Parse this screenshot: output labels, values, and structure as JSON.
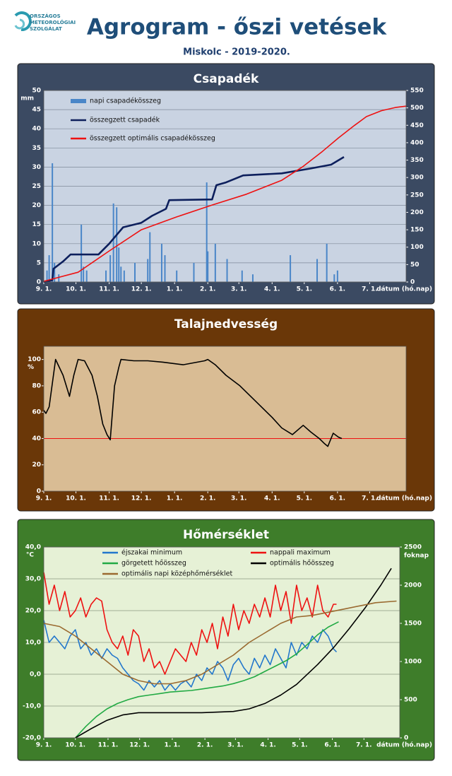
{
  "header": {
    "logo": [
      "ORSZÁGOS",
      "METEOROLÓGIAI",
      "SZOLGÁLAT"
    ],
    "title": "Agrogram - őszi vetések",
    "subtitle": "Miskolc - 2019-2020."
  },
  "chart_data": [
    {
      "type": "bar",
      "title": "Csapadék",
      "y_label": "mm",
      "x_label": "dátum (hó.nap)",
      "xlim": [
        0,
        338
      ],
      "xticks": [
        {
          "value": 0,
          "label": "9. 1."
        },
        {
          "value": 30,
          "label": "10. 1."
        },
        {
          "value": 61,
          "label": "11. 1."
        },
        {
          "value": 91,
          "label": "12. 1."
        },
        {
          "value": 122,
          "label": "1. 1."
        },
        {
          "value": 153,
          "label": "2. 1."
        },
        {
          "value": 182,
          "label": "3. 1."
        },
        {
          "value": 213,
          "label": "4. 1."
        },
        {
          "value": 243,
          "label": "5. 1."
        },
        {
          "value": 274,
          "label": "6. 1."
        },
        {
          "value": 304,
          "label": "7. 1."
        }
      ],
      "ylim": [
        0,
        50
      ],
      "yticks": [
        0,
        5,
        10,
        15,
        20,
        25,
        30,
        35,
        40,
        45,
        50
      ],
      "y2lim": [
        0,
        550
      ],
      "y2ticks": [
        0,
        50,
        100,
        150,
        200,
        250,
        300,
        350,
        400,
        450,
        500,
        550
      ],
      "grid": true,
      "series": [
        {
          "name": "napi csapadékösszeg",
          "type": "bar",
          "color": "#4a86c8",
          "x": [
            3,
            5,
            8,
            10,
            14,
            35,
            37,
            40,
            58,
            62,
            65,
            68,
            70,
            72,
            75,
            85,
            97,
            99,
            110,
            113,
            124,
            140,
            152,
            153,
            160,
            171,
            185,
            195,
            230,
            255,
            264,
            271,
            274
          ],
          "values": [
            3,
            7,
            31,
            5,
            2,
            15,
            4,
            3,
            3,
            7,
            20.5,
            19.5,
            9,
            4,
            3,
            5,
            6,
            13,
            10,
            7,
            3,
            5,
            26,
            8,
            10,
            6,
            3,
            2,
            7,
            6,
            10,
            2,
            3
          ]
        },
        {
          "name": "összegzett csapadék",
          "type": "line",
          "axis": "y2",
          "color": "#0d1f5c",
          "x": [
            0,
            8,
            9,
            18,
            25,
            32,
            51,
            61,
            74,
            91,
            101,
            114,
            117,
            157,
            161,
            170,
            186,
            222,
            249,
            268,
            280
          ],
          "values": [
            0,
            5,
            38,
            59,
            79,
            79,
            79,
            110,
            157,
            170,
            190,
            210,
            235,
            237,
            278,
            286,
            306,
            312,
            326,
            337,
            359
          ]
        },
        {
          "name": "összegzett optimális csapadékösszeg",
          "type": "line",
          "axis": "y2",
          "color": "#ee1111",
          "x": [
            0,
            32,
            61,
            91,
            124,
            157,
            189,
            222,
            242,
            260,
            275,
            290,
            301,
            315,
            328,
            338
          ],
          "values": [
            2,
            28,
            89,
            150,
            187,
            221,
            252,
            292,
            332,
            375,
            414,
            450,
            475,
            492,
            501,
            505
          ]
        }
      ]
    },
    {
      "type": "line",
      "title": "Talajnedvesség",
      "y_label": "%",
      "x_label": "dátum (hó.nap)",
      "xlim": [
        0,
        338
      ],
      "xticks": [
        {
          "value": 0,
          "label": "9. 1."
        },
        {
          "value": 30,
          "label": "10. 1."
        },
        {
          "value": 61,
          "label": "11. 1."
        },
        {
          "value": 91,
          "label": "12. 1."
        },
        {
          "value": 122,
          "label": "1. 1."
        },
        {
          "value": 153,
          "label": "2. 1."
        },
        {
          "value": 182,
          "label": "3. 1."
        },
        {
          "value": 213,
          "label": "4. 1."
        },
        {
          "value": 243,
          "label": "5. 1."
        },
        {
          "value": 274,
          "label": "6. 1."
        },
        {
          "value": 304,
          "label": "7. 1."
        }
      ],
      "ylim": [
        0,
        110
      ],
      "yticks": [
        0,
        20,
        40,
        60,
        80,
        100
      ],
      "grid": false,
      "threshold": 40,
      "threshold_color": "#ee1111",
      "series": [
        {
          "name": "talajnedvesség",
          "type": "line",
          "color": "#000000",
          "x": [
            0,
            2,
            5,
            11,
            18,
            24,
            28,
            32,
            38,
            45,
            50,
            55,
            59,
            62,
            66,
            70,
            72,
            84,
            97,
            111,
            130,
            150,
            153,
            160,
            170,
            183,
            193,
            203,
            213,
            222,
            232,
            242,
            249,
            257,
            262,
            265,
            270,
            275,
            278
          ],
          "values": [
            61.5,
            59,
            64,
            100,
            88,
            72,
            88,
            100,
            99,
            88,
            72,
            51,
            43,
            39,
            80,
            94,
            100,
            99,
            99,
            98,
            96,
            99,
            100,
            96,
            88,
            80,
            72,
            64,
            56,
            48,
            43,
            50,
            45,
            40,
            36,
            34,
            44,
            41,
            40
          ]
        }
      ]
    },
    {
      "type": "line",
      "title": "Hőmérséklet",
      "y_label": "°C",
      "y2_label": "foknap",
      "x_label": "dátum (hó.nap)",
      "xlim": [
        0,
        338
      ],
      "xticks": [
        {
          "value": 0,
          "label": "9. 1."
        },
        {
          "value": 30,
          "label": "10. 1."
        },
        {
          "value": 61,
          "label": "11. 1."
        },
        {
          "value": 91,
          "label": "12. 1."
        },
        {
          "value": 122,
          "label": "1. 1."
        },
        {
          "value": 153,
          "label": "2. 1."
        },
        {
          "value": 182,
          "label": "3. 1."
        },
        {
          "value": 213,
          "label": "4. 1."
        },
        {
          "value": 243,
          "label": "5. 1."
        },
        {
          "value": 274,
          "label": "6. 1."
        },
        {
          "value": 304,
          "label": "7. 1."
        }
      ],
      "ylim": [
        -20,
        40
      ],
      "yticks": [
        {
          "value": -20,
          "label": "-20,0"
        },
        {
          "value": -10,
          "label": "-10,0"
        },
        {
          "value": 0,
          "label": "0,0"
        },
        {
          "value": 10,
          "label": "10,0"
        },
        {
          "value": 20,
          "label": "20,0"
        },
        {
          "value": 30,
          "label": "30,0"
        },
        {
          "value": 40,
          "label": "40,0"
        }
      ],
      "y2lim": [
        0,
        2500
      ],
      "y2ticks": [
        0,
        500,
        1000,
        1500,
        2000,
        2500
      ],
      "grid": true,
      "series": [
        {
          "name": "éjszakai minimum",
          "type": "line",
          "color": "#2277cc",
          "x": [
            0,
            5,
            10,
            15,
            20,
            25,
            30,
            35,
            40,
            45,
            50,
            55,
            60,
            65,
            70,
            75,
            80,
            85,
            90,
            95,
            100,
            105,
            110,
            115,
            120,
            125,
            130,
            135,
            140,
            145,
            150,
            155,
            160,
            165,
            170,
            175,
            180,
            185,
            190,
            195,
            200,
            205,
            210,
            215,
            220,
            225,
            230,
            235,
            240,
            245,
            250,
            255,
            260,
            265,
            270,
            275,
            278
          ],
          "values": [
            17,
            10,
            12,
            10,
            8,
            12,
            14,
            8,
            10,
            6,
            8,
            5,
            8,
            6,
            5,
            2,
            0,
            -2,
            -3,
            -5,
            -2,
            -4,
            -2,
            -5,
            -3,
            -5,
            -3,
            -2,
            -4,
            0,
            -2,
            2,
            0,
            4,
            2,
            -2,
            3,
            5,
            2,
            0,
            5,
            2,
            6,
            3,
            8,
            5,
            2,
            10,
            6,
            10,
            8,
            12,
            10,
            14,
            12,
            8,
            7
          ]
        },
        {
          "name": "nappali maximum",
          "type": "line",
          "color": "#ee1111",
          "x": [
            0,
            5,
            10,
            15,
            20,
            25,
            30,
            35,
            40,
            45,
            50,
            55,
            60,
            65,
            70,
            75,
            80,
            85,
            90,
            95,
            100,
            105,
            110,
            115,
            120,
            125,
            130,
            135,
            140,
            145,
            150,
            155,
            160,
            165,
            170,
            175,
            180,
            185,
            190,
            195,
            200,
            205,
            210,
            215,
            220,
            225,
            230,
            235,
            240,
            245,
            250,
            255,
            260,
            265,
            270,
            275,
            278
          ],
          "values": [
            32,
            22,
            28,
            20,
            26,
            18,
            20,
            24,
            18,
            22,
            24,
            23,
            14,
            10,
            8,
            12,
            6,
            14,
            12,
            4,
            8,
            2,
            4,
            0,
            4,
            8,
            6,
            4,
            10,
            6,
            14,
            10,
            16,
            8,
            18,
            12,
            22,
            14,
            20,
            16,
            22,
            18,
            24,
            18,
            28,
            20,
            26,
            16,
            28,
            20,
            24,
            18,
            28,
            20,
            18,
            22,
            22
          ]
        },
        {
          "name": "görgetett hőösszeg",
          "type": "line",
          "axis": "y2",
          "color": "#22aa44",
          "x": [
            30,
            40,
            50,
            60,
            70,
            80,
            90,
            100,
            110,
            120,
            130,
            140,
            150,
            160,
            170,
            180,
            190,
            200,
            210,
            220,
            230,
            240,
            250,
            260,
            270,
            280
          ],
          "values": [
            0,
            150,
            280,
            380,
            450,
            500,
            540,
            560,
            580,
            600,
            610,
            620,
            640,
            660,
            680,
            710,
            750,
            800,
            870,
            940,
            1010,
            1100,
            1220,
            1350,
            1450,
            1520
          ]
        },
        {
          "name": "optimális hőösszeg",
          "type": "line",
          "axis": "y2",
          "color": "#000000",
          "x": [
            30,
            45,
            60,
            75,
            90,
            120,
            150,
            180,
            195,
            210,
            225,
            240,
            260,
            275,
            290,
            305,
            320,
            330
          ],
          "values": [
            0,
            120,
            230,
            300,
            330,
            330,
            330,
            345,
            380,
            450,
            560,
            700,
            960,
            1180,
            1430,
            1700,
            2000,
            2220
          ]
        },
        {
          "name": "optimális napi középhőmérséklet",
          "type": "line",
          "color": "#9a6a30",
          "x": [
            0,
            15,
            30,
            45,
            60,
            75,
            90,
            105,
            120,
            135,
            150,
            165,
            180,
            195,
            210,
            225,
            240,
            255,
            270,
            285,
            300,
            315,
            335
          ],
          "values": [
            16,
            15,
            12,
            8,
            4,
            0,
            -2,
            -3,
            -3,
            -2,
            0,
            3,
            6,
            10,
            13,
            16,
            18,
            18.5,
            19.5,
            20.5,
            21.5,
            22.5,
            23
          ]
        }
      ]
    }
  ]
}
